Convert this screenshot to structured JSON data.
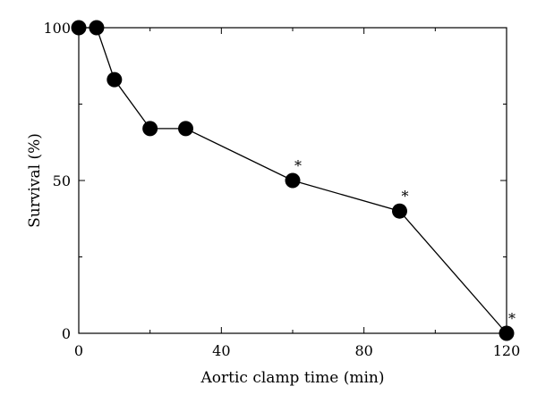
{
  "chart_data": {
    "type": "line",
    "xlabel": "Aortic clamp time (min)",
    "ylabel": "Survival (%)",
    "xlim": [
      0,
      120
    ],
    "ylim": [
      0,
      100
    ],
    "x_ticks": [
      0,
      40,
      80,
      120
    ],
    "x_minor_ticks": [
      20,
      60,
      100
    ],
    "y_ticks": [
      0,
      50,
      100
    ],
    "y_minor_ticks": [
      25,
      75
    ],
    "grid": false,
    "legend": "none",
    "series": [
      {
        "x": [
          0,
          5,
          10,
          20,
          30,
          60,
          90,
          120
        ],
        "y": [
          100,
          100,
          83,
          67,
          67,
          50,
          40,
          0
        ],
        "color": "#000000",
        "marker": "filled-circle"
      }
    ],
    "annotations": [
      {
        "x": 60,
        "y": 50,
        "text": "*"
      },
      {
        "x": 90,
        "y": 40,
        "text": "*"
      },
      {
        "x": 120,
        "y": 0,
        "text": "*"
      }
    ]
  }
}
